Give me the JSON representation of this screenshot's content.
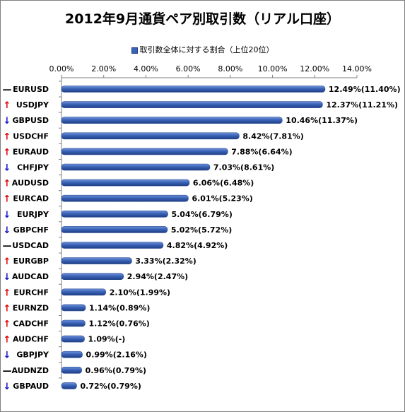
{
  "chart_data": {
    "type": "bar",
    "orientation": "horizontal",
    "title": "2012年9月通貨ペア別取引数（リアル口座）",
    "series": [
      {
        "name": "取引数全体に対する割合（上位20位）",
        "color": "#3a62b6",
        "values": [
          12.49,
          12.37,
          10.46,
          8.42,
          7.88,
          7.03,
          6.06,
          6.01,
          5.04,
          5.02,
          4.82,
          3.33,
          2.94,
          2.1,
          1.14,
          1.12,
          1.09,
          0.99,
          0.96,
          0.72
        ]
      }
    ],
    "categories": [
      "EURUSD",
      "USDJPY",
      "GBPUSD",
      "USDCHF",
      "EURAUD",
      "CHFJPY",
      "AUDUSD",
      "EURCAD",
      "EURJPY",
      "GBPCHF",
      "USDCAD",
      "EURGBP",
      "AUDCAD",
      "EURCHF",
      "EURNZD",
      "CADCHF",
      "AUDCHF",
      "GBPJPY",
      "AUDNZD",
      "GBPAUD"
    ],
    "data_labels": [
      "12.49%(11.40%)",
      "12.37%(11.21%)",
      "10.46%(11.37%)",
      "8.42%(7.81%)",
      "7.88%(6.64%)",
      "7.03%(8.61%)",
      "6.06%(6.48%)",
      "6.01%(5.23%)",
      "5.04%(6.79%)",
      "5.02%(5.72%)",
      "4.82%(4.92%)",
      "3.33%(2.32%)",
      "2.94%(2.47%)",
      "2.10%(1.99%)",
      "1.14%(0.89%)",
      "1.12%(0.76%)",
      "1.09%(-)",
      "0.99%(2.16%)",
      "0.96%(0.79%)",
      "0.72%(0.79%)"
    ],
    "trends": [
      "flat",
      "up",
      "down",
      "up",
      "up",
      "down",
      "up",
      "up",
      "down",
      "down",
      "flat",
      "up",
      "down",
      "up",
      "up",
      "up",
      "up",
      "down",
      "flat",
      "down"
    ],
    "trend_glyphs": {
      "up": "↑",
      "down": "↓",
      "flat": "—"
    },
    "trend_colors": {
      "up": "#e00000",
      "down": "#1010c8",
      "flat": "#000000"
    },
    "xlim": [
      0,
      14
    ],
    "x_ticks": [
      "0.00%",
      "2.00%",
      "4.00%",
      "6.00%",
      "8.00%",
      "10.00%",
      "12.00%",
      "14.00%"
    ],
    "x_axis_position": "top",
    "legend_position": "top",
    "grid": false
  }
}
